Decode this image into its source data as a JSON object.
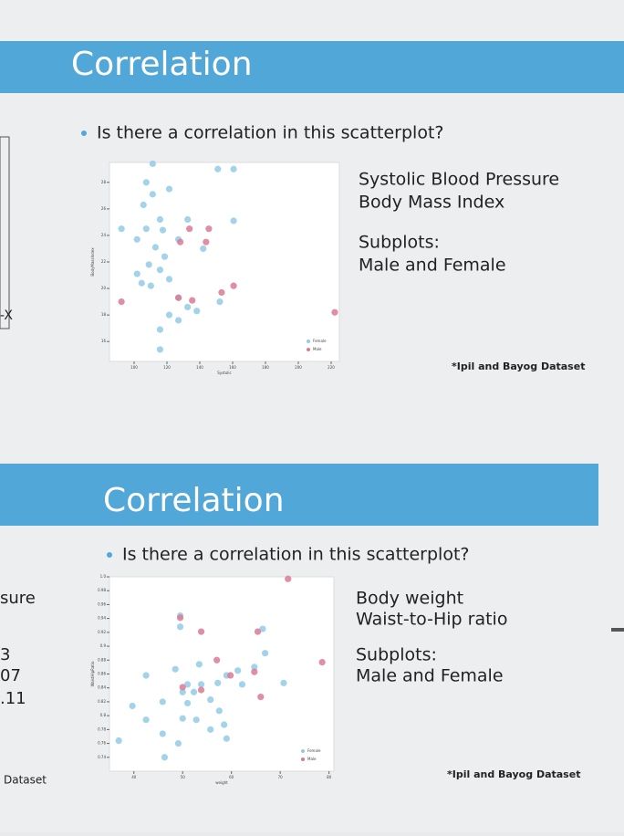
{
  "slides": [
    {
      "title": "Correlation",
      "bullet": "Is there a correlation in this scatterplot?",
      "lines": [
        "Systolic Blood Pressure",
        "Body Mass Index"
      ],
      "subplots": [
        "Subplots:",
        "Male and Female"
      ],
      "footnote": "*Ipil and Bayog Dataset"
    },
    {
      "title": "Correlation",
      "bullet": "Is there a correlation in this scatterplot?",
      "lines": [
        "Body weight",
        "Waist-to-Hip ratio"
      ],
      "subplots": [
        "Subplots:",
        "Male and Female"
      ],
      "footnote": "*Ipil and Bayog Dataset"
    }
  ],
  "left_fragments": [
    "-X",
    "sure",
    "3",
    "07",
    ".11",
    "Dataset"
  ],
  "chart_data": [
    {
      "type": "scatter",
      "x_label": "Systolic",
      "y_label": "BodyMassIndex",
      "xlim": [
        85,
        225
      ],
      "ylim": [
        14.5,
        29.5
      ],
      "xticks": [
        100,
        120,
        140,
        160,
        180,
        200,
        220
      ],
      "yticks": [
        16,
        18,
        20,
        22,
        24,
        26,
        28
      ],
      "legend": "lower right",
      "series": [
        {
          "name": "Female",
          "color": "#93cbe6",
          "x": [
            111.3,
            151,
            160.6,
            107.4,
            121.4,
            111.3,
            105.7,
            115.8,
            132.6,
            92.3,
            107.4,
            117.5,
            127,
            142.1,
            160.6,
            101.8,
            113,
            118.6,
            109,
            115.8,
            121.4,
            104.6,
            110.2,
            127,
            132.6,
            138.2,
            152.2,
            121.4,
            115.8,
            127,
            115.8,
            101.8
          ],
          "values": [
            29.4,
            29.0,
            29.0,
            28.0,
            27.5,
            27.1,
            26.3,
            25.2,
            25.2,
            24.5,
            24.5,
            24.4,
            23.7,
            23.0,
            25.1,
            23.7,
            23.1,
            22.4,
            21.8,
            21.4,
            20.7,
            20.4,
            20.2,
            19.3,
            18.6,
            18.3,
            19.0,
            18.0,
            16.9,
            17.6,
            15.4,
            21.1
          ]
        },
        {
          "name": "Male",
          "color": "#d97a93",
          "x": [
            133.7,
            145.5,
            92.3,
            135.4,
            127,
            160.6,
            153.3,
            222.2,
            128.1,
            143.8
          ],
          "values": [
            24.5,
            24.5,
            19.0,
            19.1,
            19.3,
            20.2,
            19.7,
            18.2,
            23.5,
            23.5
          ]
        }
      ]
    },
    {
      "type": "scatter",
      "x_label": "weight",
      "y_label": "WaistHipRatio",
      "xlim": [
        35,
        81
      ],
      "ylim": [
        0.72,
        1.0
      ],
      "xticks": [
        40,
        50,
        60,
        70,
        80
      ],
      "yticks": [
        0.74,
        0.76,
        0.78,
        0.8,
        0.82,
        0.84,
        0.86,
        0.88,
        0.9,
        0.92,
        0.94,
        0.96,
        0.98,
        {
          "value": 1,
          "label": "1.0"
        }
      ],
      "legend": "lower right",
      "series": [
        {
          "name": "Female",
          "color": "#93cbe6",
          "x": [
            49.5,
            49.5,
            66.4,
            66.9,
            64.7,
            61.3,
            59.0,
            53.4,
            48.5,
            42.5,
            51.0,
            52.3,
            53.8,
            62.2,
            57.2,
            55.7,
            51.0,
            45.9,
            39.7,
            50.0,
            52.8,
            42.5,
            55.7,
            58.5,
            45.9,
            36.9,
            49.1,
            59.0,
            46.3,
            70.7,
            50.0,
            57.5
          ],
          "values": [
            0.944,
            0.928,
            0.925,
            0.89,
            0.87,
            0.865,
            0.858,
            0.874,
            0.867,
            0.858,
            0.845,
            0.834,
            0.845,
            0.845,
            0.847,
            0.823,
            0.818,
            0.82,
            0.814,
            0.796,
            0.794,
            0.794,
            0.78,
            0.787,
            0.774,
            0.764,
            0.76,
            0.767,
            0.74,
            0.847,
            0.834,
            0.807
          ]
        },
        {
          "name": "Male",
          "color": "#d97a93",
          "x": [
            71.6,
            49.5,
            53.8,
            65.4,
            78.6,
            57.0,
            64.7,
            59.8,
            53.8,
            50.0,
            66.0
          ],
          "values": [
            0.997,
            0.941,
            0.921,
            0.921,
            0.877,
            0.88,
            0.863,
            0.858,
            0.837,
            0.841,
            0.827
          ]
        }
      ]
    }
  ]
}
